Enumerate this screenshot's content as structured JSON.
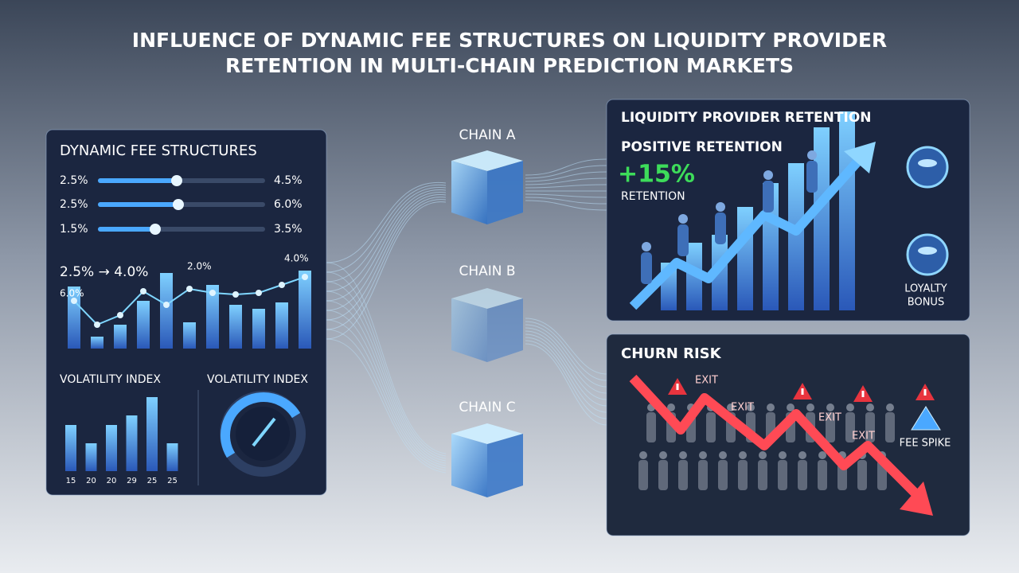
{
  "header": {
    "title_lines": [
      "INFLUENCE OF DYNAMIC FEE STRUCTURES ON LIQUIDITY PROVIDER",
      "RETENTION IN MULTI-CHAIN PREDICTION MARKETS"
    ]
  },
  "fee_panel": {
    "title": "DYNAMIC FEE STRUCTURES",
    "sliders": [
      {
        "min": "2.5%",
        "max": "4.5%"
      },
      {
        "min": "2.5%",
        "max": "6.0%"
      },
      {
        "min": "1.5%",
        "max": "3.5%"
      }
    ],
    "fee_change": "2.5% → 4.0%",
    "bar_labels": [
      "6.0%",
      "2.0%",
      "4.0%"
    ],
    "volatility_titles": [
      "VOLATILITY INDEX",
      "VOLATILITY INDEX"
    ],
    "volatility_axis": [
      "15",
      "20",
      "20",
      "29",
      "25",
      "25"
    ]
  },
  "chains": [
    "CHAIN A",
    "CHAIN B",
    "CHAIN C"
  ],
  "retention_panel": {
    "title": "LIQUIDITY PROVIDER RETENTION",
    "subtitle": "POSITIVE RETENTION",
    "change": "+15%",
    "change_label": "RETENTION",
    "loyalty_label_lines": [
      "LOYALTY",
      "BONUS"
    ]
  },
  "churn_panel": {
    "title": "CHURN RISK",
    "exit_labels": [
      "EXIT",
      "EXIT",
      "EXIT",
      "EXIT"
    ],
    "fee_spike": "FEE SPIKE"
  }
}
